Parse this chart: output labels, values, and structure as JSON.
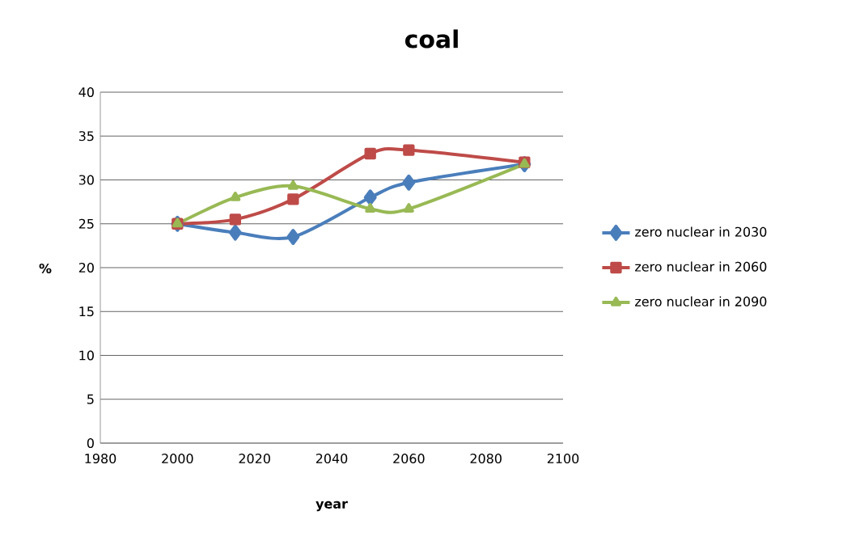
{
  "chart_data": {
    "type": "line",
    "title": "coal",
    "xlabel": "year",
    "ylabel": "%",
    "xlim": [
      1980,
      2100
    ],
    "xticks": [
      1980,
      2000,
      2020,
      2040,
      2060,
      2080,
      2100
    ],
    "ylim": [
      0,
      40
    ],
    "yticks": [
      0,
      5,
      10,
      15,
      20,
      25,
      30,
      35,
      40
    ],
    "grid": "y",
    "legend": "right",
    "line_style": "solid",
    "series": [
      {
        "name": "zero nuclear in 2030",
        "color": "#4a7ebb",
        "marker": "diamond",
        "x": [
          2000,
          2015,
          2030,
          2050,
          2060,
          2090
        ],
        "values": [
          25,
          24,
          23.5,
          28,
          29.7,
          31.8
        ]
      },
      {
        "name": "zero nuclear in 2060",
        "color": "#be4b48",
        "marker": "square",
        "x": [
          2000,
          2015,
          2030,
          2050,
          2060,
          2090
        ],
        "values": [
          25,
          25.5,
          27.8,
          33,
          33.4,
          32
        ]
      },
      {
        "name": "zero nuclear in 2090",
        "color": "#98b954",
        "marker": "triangle",
        "x": [
          2000,
          2015,
          2030,
          2050,
          2060,
          2090
        ],
        "values": [
          25,
          28,
          29.3,
          26.7,
          26.7,
          31.8
        ]
      }
    ]
  }
}
